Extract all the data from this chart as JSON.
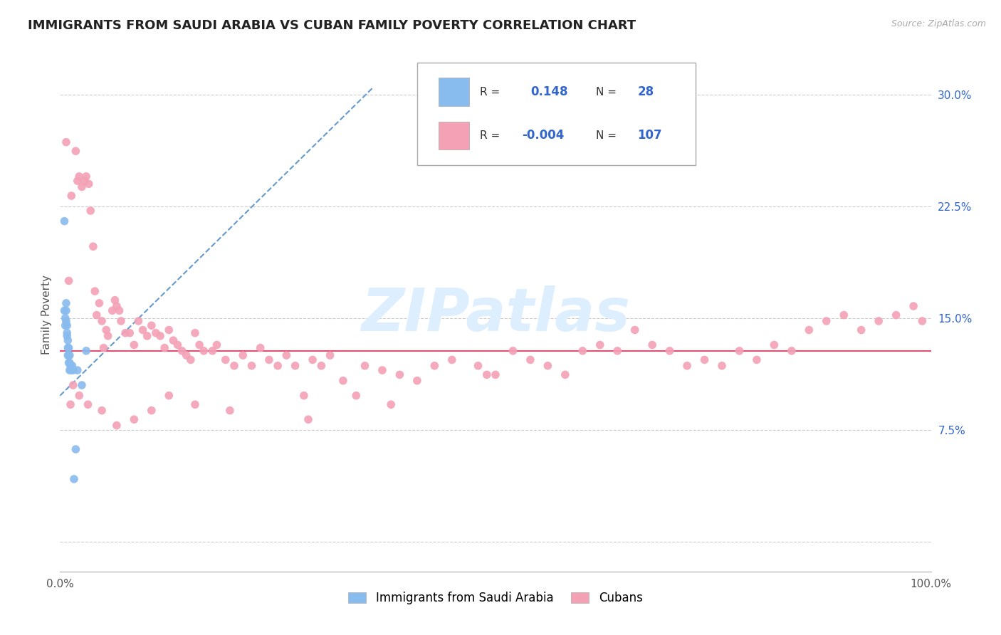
{
  "title": "IMMIGRANTS FROM SAUDI ARABIA VS CUBAN FAMILY POVERTY CORRELATION CHART",
  "source": "Source: ZipAtlas.com",
  "ylabel": "Family Poverty",
  "xlim": [
    0.0,
    1.0
  ],
  "ylim": [
    -0.02,
    0.325
  ],
  "xtick_positions": [
    0.0,
    0.25,
    0.5,
    0.75,
    1.0
  ],
  "xticklabels": [
    "0.0%",
    "",
    "",
    "",
    "100.0%"
  ],
  "ytick_positions": [
    0.0,
    0.075,
    0.15,
    0.225,
    0.3
  ],
  "yticklabels": [
    "",
    "7.5%",
    "15.0%",
    "22.5%",
    "30.0%"
  ],
  "saudi_color": "#88bbee",
  "cuban_color": "#f4a0b5",
  "saudi_line_color": "#6699cc",
  "cuban_line_color": "#e05070",
  "legend_text_color": "#3366cc",
  "label_color": "#555555",
  "grid_color": "#cccccc",
  "watermark_color": "#ddeeff",
  "horizontal_line_y": 0.128,
  "saudi_trend_x0": 0.0,
  "saudi_trend_y0": 0.098,
  "saudi_trend_x1": 0.36,
  "saudi_trend_y1": 0.305,
  "saudi_points_x": [
    0.005,
    0.005,
    0.006,
    0.006,
    0.007,
    0.007,
    0.007,
    0.008,
    0.008,
    0.008,
    0.009,
    0.009,
    0.009,
    0.01,
    0.01,
    0.01,
    0.011,
    0.011,
    0.011,
    0.012,
    0.013,
    0.014,
    0.015,
    0.016,
    0.018,
    0.02,
    0.025,
    0.03
  ],
  "saudi_points_y": [
    0.215,
    0.155,
    0.15,
    0.145,
    0.16,
    0.155,
    0.148,
    0.145,
    0.14,
    0.138,
    0.135,
    0.13,
    0.125,
    0.13,
    0.125,
    0.12,
    0.125,
    0.12,
    0.115,
    0.118,
    0.115,
    0.118,
    0.115,
    0.042,
    0.062,
    0.115,
    0.105,
    0.128
  ],
  "cuban_points_x": [
    0.007,
    0.01,
    0.013,
    0.018,
    0.02,
    0.022,
    0.025,
    0.028,
    0.03,
    0.033,
    0.035,
    0.038,
    0.04,
    0.042,
    0.045,
    0.048,
    0.05,
    0.053,
    0.055,
    0.06,
    0.063,
    0.065,
    0.068,
    0.07,
    0.075,
    0.08,
    0.085,
    0.09,
    0.095,
    0.1,
    0.105,
    0.11,
    0.115,
    0.12,
    0.125,
    0.13,
    0.135,
    0.14,
    0.145,
    0.15,
    0.155,
    0.16,
    0.165,
    0.175,
    0.18,
    0.19,
    0.2,
    0.21,
    0.22,
    0.23,
    0.24,
    0.25,
    0.26,
    0.27,
    0.28,
    0.29,
    0.3,
    0.31,
    0.325,
    0.34,
    0.35,
    0.37,
    0.39,
    0.41,
    0.43,
    0.45,
    0.48,
    0.5,
    0.52,
    0.54,
    0.56,
    0.58,
    0.6,
    0.62,
    0.64,
    0.66,
    0.68,
    0.7,
    0.72,
    0.74,
    0.76,
    0.78,
    0.8,
    0.82,
    0.84,
    0.86,
    0.88,
    0.9,
    0.92,
    0.94,
    0.96,
    0.98,
    0.99,
    0.49,
    0.38,
    0.285,
    0.195,
    0.155,
    0.125,
    0.105,
    0.085,
    0.065,
    0.048,
    0.032,
    0.022,
    0.015,
    0.012
  ],
  "cuban_points_y": [
    0.268,
    0.175,
    0.232,
    0.262,
    0.242,
    0.245,
    0.238,
    0.242,
    0.245,
    0.24,
    0.222,
    0.198,
    0.168,
    0.152,
    0.16,
    0.148,
    0.13,
    0.142,
    0.138,
    0.155,
    0.162,
    0.158,
    0.155,
    0.148,
    0.14,
    0.14,
    0.132,
    0.148,
    0.142,
    0.138,
    0.145,
    0.14,
    0.138,
    0.13,
    0.142,
    0.135,
    0.132,
    0.128,
    0.125,
    0.122,
    0.14,
    0.132,
    0.128,
    0.128,
    0.132,
    0.122,
    0.118,
    0.125,
    0.118,
    0.13,
    0.122,
    0.118,
    0.125,
    0.118,
    0.098,
    0.122,
    0.118,
    0.125,
    0.108,
    0.098,
    0.118,
    0.115,
    0.112,
    0.108,
    0.118,
    0.122,
    0.118,
    0.112,
    0.128,
    0.122,
    0.118,
    0.112,
    0.128,
    0.132,
    0.128,
    0.142,
    0.132,
    0.128,
    0.118,
    0.122,
    0.118,
    0.128,
    0.122,
    0.132,
    0.128,
    0.142,
    0.148,
    0.152,
    0.142,
    0.148,
    0.152,
    0.158,
    0.148,
    0.112,
    0.092,
    0.082,
    0.088,
    0.092,
    0.098,
    0.088,
    0.082,
    0.078,
    0.088,
    0.092,
    0.098,
    0.105,
    0.092
  ]
}
